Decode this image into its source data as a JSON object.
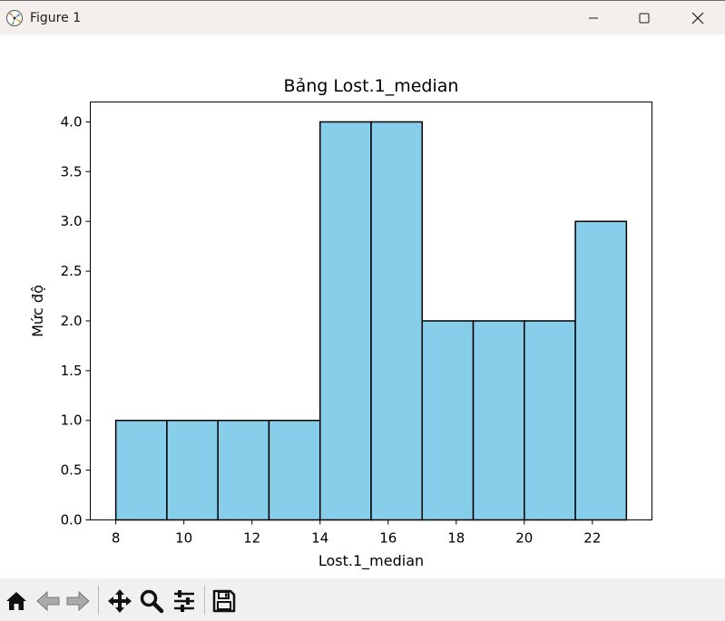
{
  "window": {
    "title": "Figure 1",
    "controls": [
      "minimize",
      "maximize",
      "close"
    ]
  },
  "chart_data": {
    "type": "bar",
    "title": "Bảng Lost.1_median",
    "xlabel": "Lost.1_median",
    "ylabel": "Mức độ",
    "bin_edges": [
      8,
      9.5,
      11,
      12.5,
      14,
      15.5,
      17,
      18.5,
      20,
      21.5,
      23
    ],
    "values": [
      1,
      1,
      1,
      1,
      4,
      4,
      2,
      2,
      2,
      3
    ],
    "xlim": [
      7.25,
      23.75
    ],
    "ylim": [
      0,
      4.2
    ],
    "xticks": [
      8,
      10,
      12,
      14,
      16,
      18,
      20,
      22
    ],
    "yticks": [
      0.0,
      0.5,
      1.0,
      1.5,
      2.0,
      2.5,
      3.0,
      3.5,
      4.0
    ],
    "ytick_labels": [
      "0.0",
      "0.5",
      "1.0",
      "1.5",
      "2.0",
      "2.5",
      "3.0",
      "3.5",
      "4.0"
    ],
    "bar_color": "#87ceeb",
    "edge_color": "#000000",
    "grid": false,
    "legend": false
  },
  "toolbar": {
    "tools": [
      "home-icon",
      "back-icon",
      "forward-icon",
      "pan-icon",
      "zoom-icon",
      "configure-subplots-icon",
      "save-icon"
    ]
  }
}
